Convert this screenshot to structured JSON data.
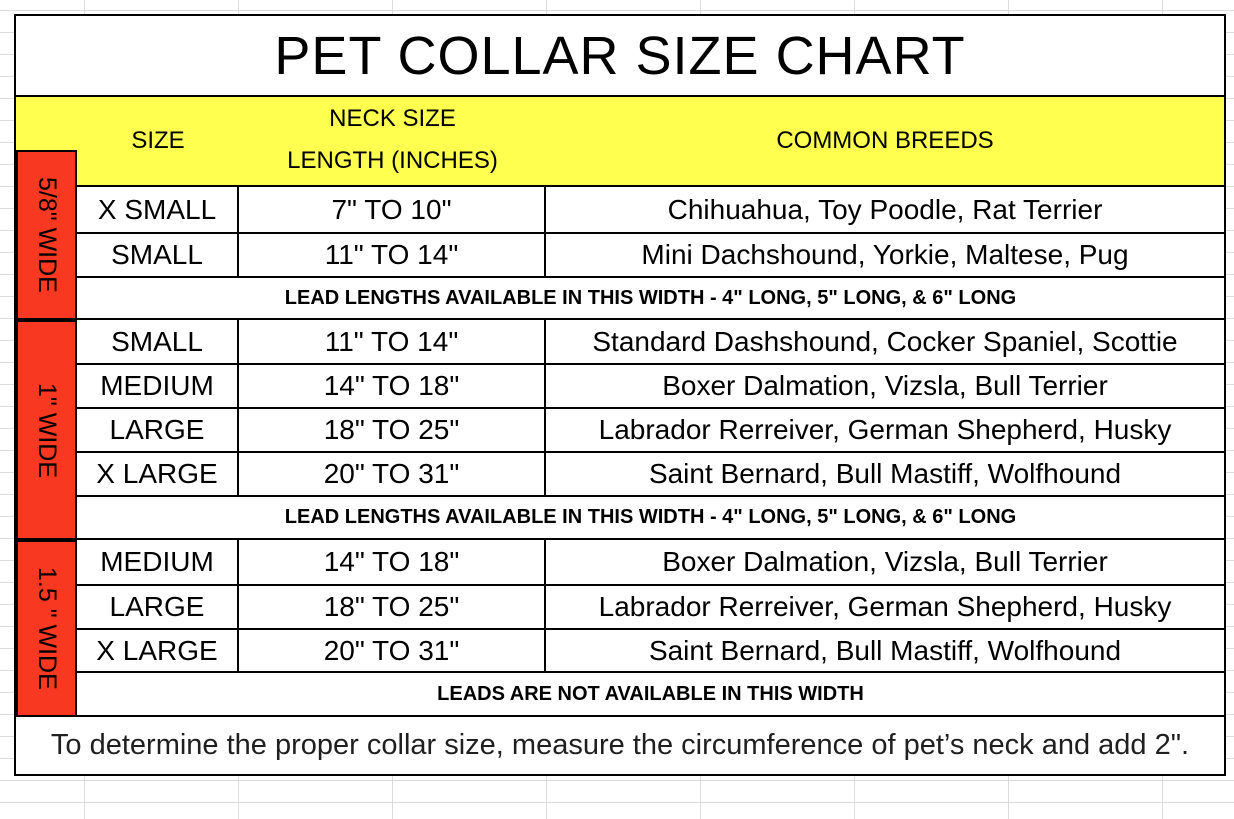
{
  "title": "PET COLLAR SIZE CHART",
  "header": {
    "size": "SIZE",
    "neck_line1": "NECK SIZE",
    "neck_line2": "LENGTH (INCHES)",
    "breeds": "COMMON BREEDS"
  },
  "colors": {
    "header_bg": "#FFFF4F",
    "width_label_bg": "#F93822",
    "border": "#000000"
  },
  "sections": [
    {
      "width_label": "5/8\" WIDE",
      "rows": [
        {
          "size": "X SMALL",
          "neck": "7\" TO 10\"",
          "breeds": "Chihuahua, Toy Poodle, Rat Terrier"
        },
        {
          "size": "SMALL",
          "neck": "11\" TO 14\"",
          "breeds": "Mini Dachshound, Yorkie, Maltese, Pug"
        }
      ],
      "note": "LEAD LENGTHS AVAILABLE IN THIS WIDTH - 4\" LONG, 5\" LONG, & 6\" LONG"
    },
    {
      "width_label": "1\" WIDE",
      "rows": [
        {
          "size": "SMALL",
          "neck": "11\" TO 14\"",
          "breeds": "Standard Dashshound, Cocker Spaniel, Scottie"
        },
        {
          "size": "MEDIUM",
          "neck": "14\" TO 18\"",
          "breeds": "Boxer Dalmation, Vizsla, Bull Terrier"
        },
        {
          "size": "LARGE",
          "neck": "18\" TO 25\"",
          "breeds": "Labrador Rerreiver, German Shepherd, Husky"
        },
        {
          "size": "X LARGE",
          "neck": "20\" TO 31\"",
          "breeds": "Saint Bernard, Bull Mastiff, Wolfhound"
        }
      ],
      "note": "LEAD LENGTHS AVAILABLE IN THIS WIDTH  - 4\" LONG, 5\" LONG, & 6\" LONG"
    },
    {
      "width_label": "1.5 \" WIDE",
      "rows": [
        {
          "size": "MEDIUM",
          "neck": "14\" TO 18\"",
          "breeds": "Boxer Dalmation, Vizsla, Bull Terrier"
        },
        {
          "size": "LARGE",
          "neck": "18\" TO 25\"",
          "breeds": "Labrador Rerreiver, German Shepherd, Husky"
        },
        {
          "size": "X LARGE",
          "neck": "20\" TO 31\"",
          "breeds": "Saint Bernard, Bull Mastiff, Wolfhound"
        }
      ],
      "note": "LEADS ARE NOT AVAILABLE IN THIS WIDTH"
    }
  ],
  "footer": "To determine the proper collar size, measure the circumference of pet’s neck and add 2\"."
}
